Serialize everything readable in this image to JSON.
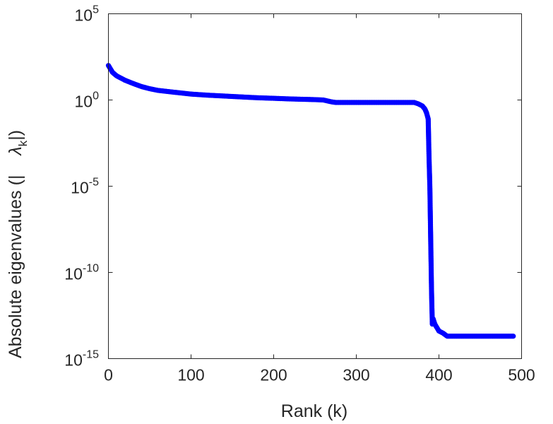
{
  "chart_data": {
    "type": "scatter",
    "xlabel": "Rank (k)",
    "ylabel": "Absolute eigenvalues (|",
    "ylabel_symbol": "λ",
    "ylabel_subscript": "k",
    "ylabel_close": "|)",
    "xlim": [
      0,
      500
    ],
    "ylim": [
      1e-15,
      100000
    ],
    "yscale": "log",
    "grid": false,
    "marker_color": "#0000ff",
    "x_ticks": [
      0,
      100,
      200,
      300,
      400,
      500
    ],
    "x_tick_labels": [
      "0",
      "100",
      "200",
      "300",
      "400",
      "500"
    ],
    "y_ticks": [
      {
        "value": 1e-15,
        "base": "10",
        "exp": "-15"
      },
      {
        "value": 1e-10,
        "base": "10",
        "exp": "-10"
      },
      {
        "value": 1e-05,
        "base": "10",
        "exp": "-5"
      },
      {
        "value": 1,
        "base": "10",
        "exp": "0"
      },
      {
        "value": 100000,
        "base": "10",
        "exp": "5"
      }
    ],
    "series": [
      {
        "x": [
          0,
          5,
          10,
          20,
          30,
          40,
          50,
          60,
          80,
          100,
          120,
          150,
          180,
          200,
          220,
          250,
          260,
          270,
          275,
          300,
          330,
          350,
          360,
          370,
          375,
          380,
          383,
          385,
          387,
          388,
          389,
          390,
          391,
          392,
          393,
          395,
          400,
          405,
          410,
          450,
          490
        ],
        "y": [
          100,
          40,
          25,
          14,
          9,
          6,
          4.5,
          3.6,
          2.8,
          2.2,
          1.9,
          1.6,
          1.35,
          1.25,
          1.15,
          1.05,
          1.0,
          0.78,
          0.72,
          0.72,
          0.72,
          0.72,
          0.72,
          0.72,
          0.6,
          0.45,
          0.3,
          0.18,
          0.08,
          0.0005,
          1e-05,
          1e-08,
          1e-11,
          1e-13,
          2e-13,
          1e-13,
          4e-14,
          3e-14,
          2e-14,
          2e-14,
          2e-14
        ]
      }
    ]
  }
}
